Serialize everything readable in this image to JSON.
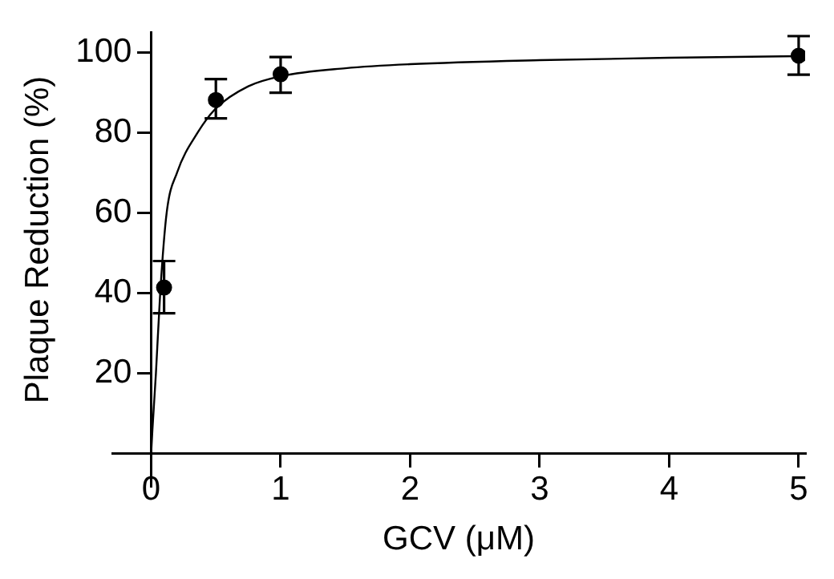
{
  "chart_data": {
    "type": "scatter",
    "xlabel": "GCV (μM)",
    "ylabel": "Plaque Reduction (%)",
    "xlim": [
      -0.3,
      5.05
    ],
    "ylim": [
      -8,
      105
    ],
    "xticks": [
      0,
      1,
      2,
      3,
      4,
      5
    ],
    "yticks": [
      20,
      40,
      60,
      80,
      100
    ],
    "grid": false,
    "legend": false,
    "series": [
      {
        "color": "#000000",
        "marker": "circle",
        "x": [
          0.1,
          0.5,
          1,
          5
        ],
        "values": [
          41.4,
          88.1,
          94.5,
          99.1
        ],
        "errors": [
          [
            35,
            48
          ],
          [
            83.5,
            93.3
          ],
          [
            89.9,
            98.8
          ],
          [
            94.4,
            104
          ]
        ]
      },
      {
        "type": "line",
        "color": "#000000",
        "marker": "none",
        "line_style": "solid",
        "x": [
          0,
          0.01,
          0.037,
          0.07,
          0.12,
          0.2,
          0.36,
          0.5,
          0.75,
          1,
          1.5,
          2,
          3,
          4,
          5
        ],
        "values": [
          0,
          6,
          20,
          40,
          60,
          70,
          80,
          86,
          91.5,
          94,
          96,
          97,
          98,
          98.6,
          99
        ]
      }
    ]
  }
}
